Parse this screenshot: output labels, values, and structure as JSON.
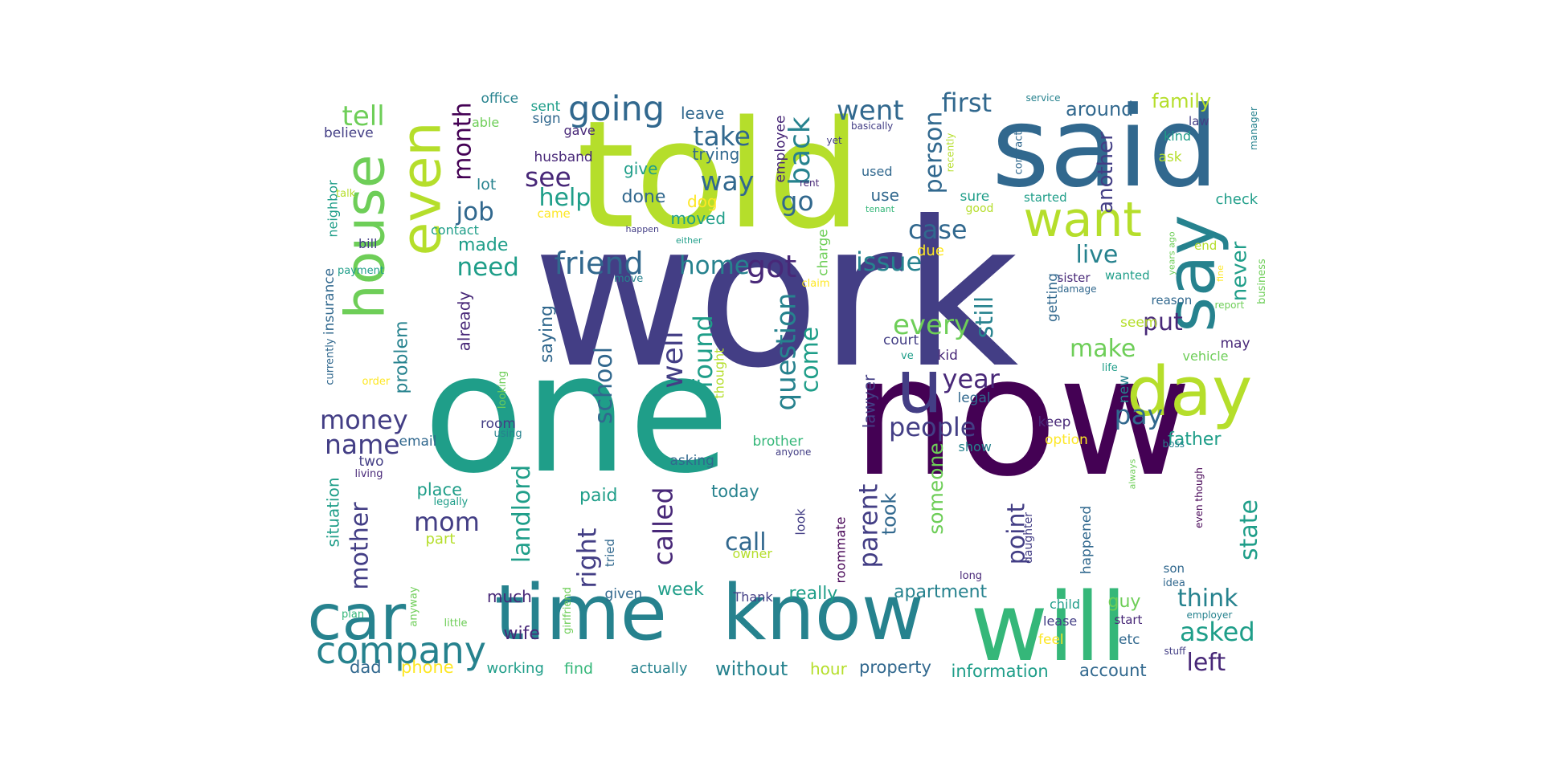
{
  "palette": {
    "c1": "#440154",
    "c2": "#482878",
    "c3": "#433e85",
    "c4": "#31688e",
    "c5": "#26828e",
    "c6": "#1f9e89",
    "c7": "#35b779",
    "c8": "#6ece58",
    "c9": "#b5de2b",
    "c10": "#fde725"
  },
  "words": [
    {
      "text": "work",
      "color": "c3"
    },
    {
      "text": "one",
      "color": "c6"
    },
    {
      "text": "now",
      "color": "c1"
    },
    {
      "text": "told",
      "color": "c9"
    },
    {
      "text": "said",
      "color": "c4"
    },
    {
      "text": "time",
      "color": "c5"
    },
    {
      "text": "know",
      "color": "c5"
    },
    {
      "text": "will",
      "color": "c7"
    },
    {
      "text": "u",
      "color": "c3"
    },
    {
      "text": "house",
      "color": "c8"
    },
    {
      "text": "even",
      "color": "c9"
    },
    {
      "text": "say",
      "color": "c5"
    },
    {
      "text": "day",
      "color": "c9"
    },
    {
      "text": "car",
      "color": "c5"
    },
    {
      "text": "want",
      "color": "c9"
    },
    {
      "text": "company",
      "color": "c5"
    },
    {
      "text": "going",
      "color": "c4"
    },
    {
      "text": "friend",
      "color": "c4"
    },
    {
      "text": "got",
      "color": "c2"
    },
    {
      "text": "back",
      "color": "c5"
    },
    {
      "text": "went",
      "color": "c4"
    },
    {
      "text": "first",
      "color": "c4"
    },
    {
      "text": "tell",
      "color": "c8"
    },
    {
      "text": "take",
      "color": "c4"
    },
    {
      "text": "way",
      "color": "c4"
    },
    {
      "text": "go",
      "color": "c4"
    },
    {
      "text": "see",
      "color": "c2"
    },
    {
      "text": "help",
      "color": "c6"
    },
    {
      "text": "job",
      "color": "c4"
    },
    {
      "text": "need",
      "color": "c6"
    },
    {
      "text": "home",
      "color": "c5"
    },
    {
      "text": "issue",
      "color": "c5"
    },
    {
      "text": "case",
      "color": "c4"
    },
    {
      "text": "live",
      "color": "c5"
    },
    {
      "text": "person",
      "color": "c4"
    },
    {
      "text": "month",
      "color": "c1"
    },
    {
      "text": "money",
      "color": "c3"
    },
    {
      "text": "name",
      "color": "c3"
    },
    {
      "text": "well",
      "color": "c3"
    },
    {
      "text": "found",
      "color": "c6"
    },
    {
      "text": "question",
      "color": "c5"
    },
    {
      "text": "come",
      "color": "c6"
    },
    {
      "text": "school",
      "color": "c4"
    },
    {
      "text": "every",
      "color": "c8"
    },
    {
      "text": "still",
      "color": "c5"
    },
    {
      "text": "year",
      "color": "c2"
    },
    {
      "text": "people",
      "color": "c3"
    },
    {
      "text": "pay",
      "color": "c4"
    },
    {
      "text": "make",
      "color": "c8"
    },
    {
      "text": "put",
      "color": "c2"
    },
    {
      "text": "never",
      "color": "c6"
    },
    {
      "text": "another",
      "color": "c3"
    },
    {
      "text": "around",
      "color": "c4"
    },
    {
      "text": "family",
      "color": "c9"
    },
    {
      "text": "called",
      "color": "c2"
    },
    {
      "text": "landlord",
      "color": "c6"
    },
    {
      "text": "mom",
      "color": "c3"
    },
    {
      "text": "mother",
      "color": "c3"
    },
    {
      "text": "call",
      "color": "c4"
    },
    {
      "text": "right",
      "color": "c3"
    },
    {
      "text": "parent",
      "color": "c3"
    },
    {
      "text": "took",
      "color": "c4"
    },
    {
      "text": "someone",
      "color": "c8"
    },
    {
      "text": "point",
      "color": "c3"
    },
    {
      "text": "state",
      "color": "c6"
    },
    {
      "text": "think",
      "color": "c5"
    },
    {
      "text": "asked",
      "color": "c6"
    },
    {
      "text": "left",
      "color": "c2"
    },
    {
      "text": "father",
      "color": "c6"
    },
    {
      "text": "apartment",
      "color": "c5"
    },
    {
      "text": "really",
      "color": "c6"
    },
    {
      "text": "week",
      "color": "c6"
    },
    {
      "text": "wife",
      "color": "c2"
    },
    {
      "text": "dad",
      "color": "c4"
    },
    {
      "text": "phone",
      "color": "c10"
    },
    {
      "text": "working",
      "color": "c6"
    },
    {
      "text": "find",
      "color": "c7"
    },
    {
      "text": "actually",
      "color": "c5"
    },
    {
      "text": "without",
      "color": "c5"
    },
    {
      "text": "hour",
      "color": "c9"
    },
    {
      "text": "property",
      "color": "c4"
    },
    {
      "text": "information",
      "color": "c6"
    },
    {
      "text": "account",
      "color": "c4"
    },
    {
      "text": "guy",
      "color": "c8"
    },
    {
      "text": "much",
      "color": "c2"
    },
    {
      "text": "today",
      "color": "c5"
    },
    {
      "text": "paid",
      "color": "c6"
    },
    {
      "text": "place",
      "color": "c6"
    },
    {
      "text": "made",
      "color": "c6"
    },
    {
      "text": "saying",
      "color": "c4"
    },
    {
      "text": "problem",
      "color": "c5"
    },
    {
      "text": "already",
      "color": "c2"
    },
    {
      "text": "lot",
      "color": "c5"
    },
    {
      "text": "done",
      "color": "c4"
    },
    {
      "text": "give",
      "color": "c6"
    },
    {
      "text": "moved",
      "color": "c6"
    },
    {
      "text": "dog",
      "color": "c10"
    },
    {
      "text": "trying",
      "color": "c4"
    },
    {
      "text": "leave",
      "color": "c4"
    },
    {
      "text": "employee",
      "color": "c2"
    },
    {
      "text": "office",
      "color": "c5"
    },
    {
      "text": "sent",
      "color": "c6"
    },
    {
      "text": "able",
      "color": "c8"
    },
    {
      "text": "sign",
      "color": "c4"
    },
    {
      "text": "gave",
      "color": "c2"
    },
    {
      "text": "husband",
      "color": "c2"
    },
    {
      "text": "believe",
      "color": "c3"
    },
    {
      "text": "neighbor",
      "color": "c6"
    },
    {
      "text": "talk",
      "color": "c9"
    },
    {
      "text": "came",
      "color": "c10"
    },
    {
      "text": "contact",
      "color": "c6"
    },
    {
      "text": "bill",
      "color": "c3"
    },
    {
      "text": "insurance",
      "color": "c4"
    },
    {
      "text": "payment",
      "color": "c6"
    },
    {
      "text": "currently",
      "color": "c4"
    },
    {
      "text": "order",
      "color": "c10"
    },
    {
      "text": "email",
      "color": "c4"
    },
    {
      "text": "two",
      "color": "c3"
    },
    {
      "text": "living",
      "color": "c2"
    },
    {
      "text": "situation",
      "color": "c6"
    },
    {
      "text": "legally",
      "color": "c6"
    },
    {
      "text": "part",
      "color": "c9"
    },
    {
      "text": "looking",
      "color": "c8"
    },
    {
      "text": "room",
      "color": "c3"
    },
    {
      "text": "using",
      "color": "c5"
    },
    {
      "text": "asking",
      "color": "c4"
    },
    {
      "text": "girlfriend",
      "color": "c8"
    },
    {
      "text": "anyway",
      "color": "c8"
    },
    {
      "text": "plan",
      "color": "c7"
    },
    {
      "text": "little",
      "color": "c8"
    },
    {
      "text": "given",
      "color": "c4"
    },
    {
      "text": "tried",
      "color": "c4"
    },
    {
      "text": "owner",
      "color": "c9"
    },
    {
      "text": "Thank",
      "color": "c3"
    },
    {
      "text": "look",
      "color": "c3"
    },
    {
      "text": "roommate",
      "color": "c1"
    },
    {
      "text": "brother",
      "color": "c7"
    },
    {
      "text": "anyone",
      "color": "c3"
    },
    {
      "text": "thought",
      "color": "c9"
    },
    {
      "text": "lawyer",
      "color": "c3"
    },
    {
      "text": "court",
      "color": "c3"
    },
    {
      "text": "ve",
      "color": "c6"
    },
    {
      "text": "kid",
      "color": "c2"
    },
    {
      "text": "legal",
      "color": "c4"
    },
    {
      "text": "show",
      "color": "c5"
    },
    {
      "text": "long",
      "color": "c2"
    },
    {
      "text": "daughter",
      "color": "c3"
    },
    {
      "text": "keep",
      "color": "c2"
    },
    {
      "text": "option",
      "color": "c10"
    },
    {
      "text": "new",
      "color": "c5"
    },
    {
      "text": "life",
      "color": "c6"
    },
    {
      "text": "seem",
      "color": "c9"
    },
    {
      "text": "happened",
      "color": "c4"
    },
    {
      "text": "etc",
      "color": "c4"
    },
    {
      "text": "feel",
      "color": "c10"
    },
    {
      "text": "lease",
      "color": "c3"
    },
    {
      "text": "child",
      "color": "c6"
    },
    {
      "text": "start",
      "color": "c2"
    },
    {
      "text": "son",
      "color": "c4"
    },
    {
      "text": "idea",
      "color": "c4"
    },
    {
      "text": "stuff",
      "color": "c3"
    },
    {
      "text": "employer",
      "color": "c5"
    },
    {
      "text": "even though",
      "color": "c1"
    },
    {
      "text": "always",
      "color": "c8"
    },
    {
      "text": "boss",
      "color": "c5"
    },
    {
      "text": "vehicle",
      "color": "c8"
    },
    {
      "text": "may",
      "color": "c2"
    },
    {
      "text": "reason",
      "color": "c4"
    },
    {
      "text": "sister",
      "color": "c2"
    },
    {
      "text": "damage",
      "color": "c4"
    },
    {
      "text": "wanted",
      "color": "c6"
    },
    {
      "text": "getting",
      "color": "c4"
    },
    {
      "text": "years ago",
      "color": "c8"
    },
    {
      "text": "fine",
      "color": "c10"
    },
    {
      "text": "report",
      "color": "c8"
    },
    {
      "text": "business",
      "color": "c8"
    },
    {
      "text": "end",
      "color": "c9"
    },
    {
      "text": "check",
      "color": "c6"
    },
    {
      "text": "manager",
      "color": "c5"
    },
    {
      "text": "kind",
      "color": "c6"
    },
    {
      "text": "ask",
      "color": "c9"
    },
    {
      "text": "law",
      "color": "c3"
    },
    {
      "text": "contract",
      "color": "c4"
    },
    {
      "text": "started",
      "color": "c6"
    },
    {
      "text": "good",
      "color": "c9"
    },
    {
      "text": "recently",
      "color": "c9"
    },
    {
      "text": "service",
      "color": "c5"
    },
    {
      "text": "basically",
      "color": "c3"
    },
    {
      "text": "sure",
      "color": "c6"
    },
    {
      "text": "due",
      "color": "c10"
    },
    {
      "text": "used",
      "color": "c4"
    },
    {
      "text": "use",
      "color": "c4"
    },
    {
      "text": "tenant",
      "color": "c7"
    },
    {
      "text": "yet",
      "color": "c3"
    },
    {
      "text": "rent",
      "color": "c2"
    },
    {
      "text": "charge",
      "color": "c8"
    },
    {
      "text": "claim",
      "color": "c10"
    },
    {
      "text": "either",
      "color": "c6"
    },
    {
      "text": "happen",
      "color": "c3"
    },
    {
      "text": "move",
      "color": "c5"
    }
  ]
}
